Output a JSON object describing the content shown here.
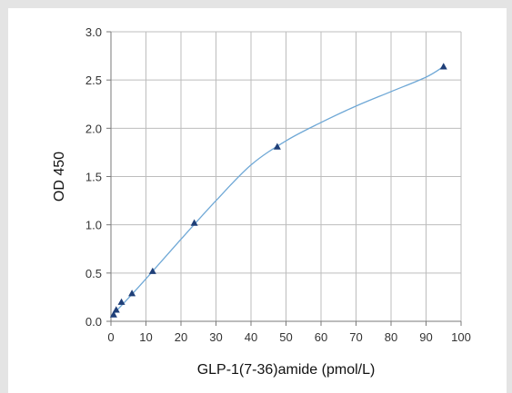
{
  "chart_data": {
    "type": "scatter",
    "xlabel": "GLP-1(7-36)amide (pmol/L)",
    "ylabel": "OD 450",
    "xlim": [
      0,
      100
    ],
    "ylim": [
      0,
      3.0
    ],
    "x_ticks": [
      "0",
      "10",
      "20",
      "30",
      "40",
      "50",
      "60",
      "70",
      "80",
      "90",
      "100"
    ],
    "y_ticks": [
      "0.0",
      "0.5",
      "1.0",
      "1.5",
      "2.0",
      "2.5",
      "3.0"
    ],
    "grid": true,
    "marker": "triangle",
    "series": [
      {
        "x": [
          0.75,
          1.5,
          3.0,
          6.0,
          11.9,
          23.8,
          47.5,
          95.0
        ],
        "y": [
          0.07,
          0.12,
          0.2,
          0.29,
          0.52,
          1.02,
          1.81,
          2.64
        ]
      }
    ],
    "fit_curve": {
      "x": [
        0,
        5,
        10,
        20,
        30,
        40,
        50,
        60,
        70,
        80,
        90,
        95
      ],
      "y": [
        0.05,
        0.24,
        0.44,
        0.85,
        1.25,
        1.62,
        1.87,
        2.06,
        2.23,
        2.38,
        2.53,
        2.64
      ]
    },
    "colors": {
      "marker": "#1f3f78",
      "fit_line": "#6fa8d6",
      "grid": "#bdbdbd",
      "axis": "#7a7a7a",
      "background": "#e4e4e4"
    }
  }
}
